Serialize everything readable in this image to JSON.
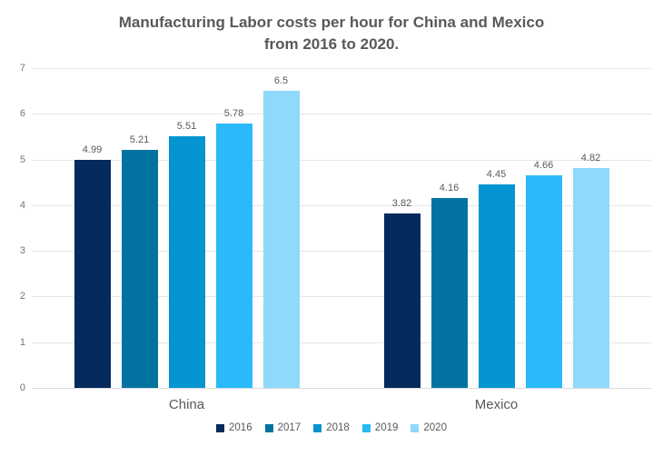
{
  "title": {
    "line1": "Manufacturing Labor costs per hour for China and Mexico",
    "line2": "from 2016 to 2020."
  },
  "chart_data": {
    "type": "bar",
    "title": "Manufacturing Labor costs per hour for China and Mexico from 2016 to 2020.",
    "categories": [
      "China",
      "Mexico"
    ],
    "series": [
      {
        "name": "2016",
        "color": "#052a5e",
        "values": [
          4.99,
          3.82
        ]
      },
      {
        "name": "2017",
        "color": "#0273a0",
        "values": [
          5.21,
          4.16
        ]
      },
      {
        "name": "2018",
        "color": "#0494d1",
        "values": [
          5.51,
          4.45
        ]
      },
      {
        "name": "2019",
        "color": "#2ab9fa",
        "values": [
          5.78,
          4.66
        ]
      },
      {
        "name": "2020",
        "color": "#8fd9fa",
        "values": [
          6.5,
          4.82
        ]
      }
    ],
    "value_labels": {
      "China": [
        "4.99",
        "5.21",
        "5.51",
        "5.78",
        "6.5"
      ],
      "Mexico": [
        "3.82",
        "4.16",
        "4.45",
        "4.66",
        "4.82"
      ]
    },
    "xlabel": "",
    "ylabel": "",
    "ylim": [
      0,
      7
    ],
    "ytick_step": 1,
    "grid": true,
    "legend_position": "bottom"
  },
  "colors": {
    "title_text": "#595959",
    "value_text": "#595959",
    "axis_text": "#757575",
    "category_text": "#595959",
    "gridline": "#e6e6e6",
    "baseline": "#d9d9d9",
    "background": "#ffffff"
  }
}
